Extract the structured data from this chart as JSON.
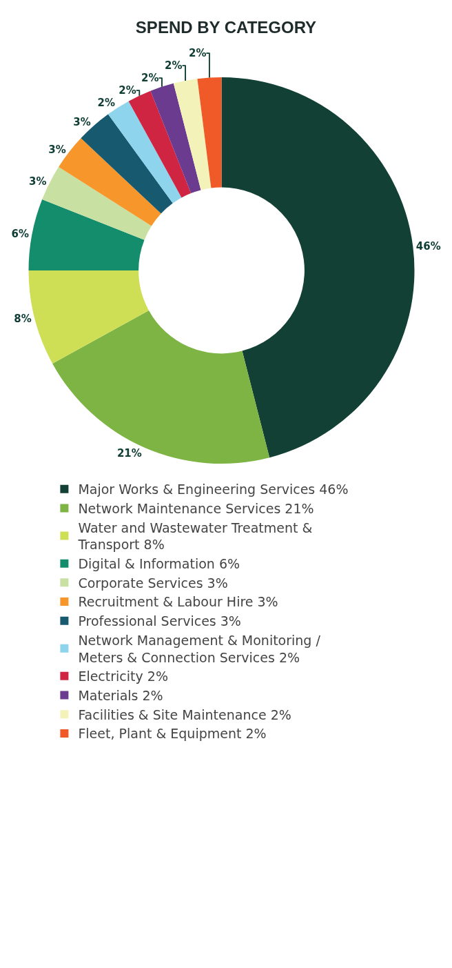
{
  "chart_data": {
    "type": "donut",
    "title": "SPEND BY CATEGORY",
    "categories": [
      "Major Works & Engineering Services 46%",
      "Network Maintenance Services 21%",
      "Water and Wastewater Treatment & Transport 8%",
      "Digital & Information 6%",
      "Corporate Services 3%",
      "Recruitment & Labour Hire 3%",
      "Professional Services 3%",
      "Network Management & Monitoring / Meters & Connection Services 2%",
      "Electricity 2%",
      "Materials 2%",
      "Facilities & Site Maintenance 2%",
      "Fleet, Plant & Equipment 2%"
    ],
    "values": [
      46,
      21,
      8,
      6,
      3,
      3,
      3,
      2,
      2,
      2,
      2,
      2
    ],
    "value_labels": [
      "46%",
      "21%",
      "8%",
      "6%",
      "3%",
      "3%",
      "3%",
      "2%",
      "2%",
      "2%",
      "2%",
      "2%"
    ],
    "colors": [
      "#124034",
      "#7db443",
      "#cfdf55",
      "#138d6c",
      "#c9e0a3",
      "#f7962a",
      "#17596f",
      "#8dd4ec",
      "#cf2543",
      "#6b3b8f",
      "#f3f2b8",
      "#f05a28"
    ],
    "legend": "bottom"
  }
}
